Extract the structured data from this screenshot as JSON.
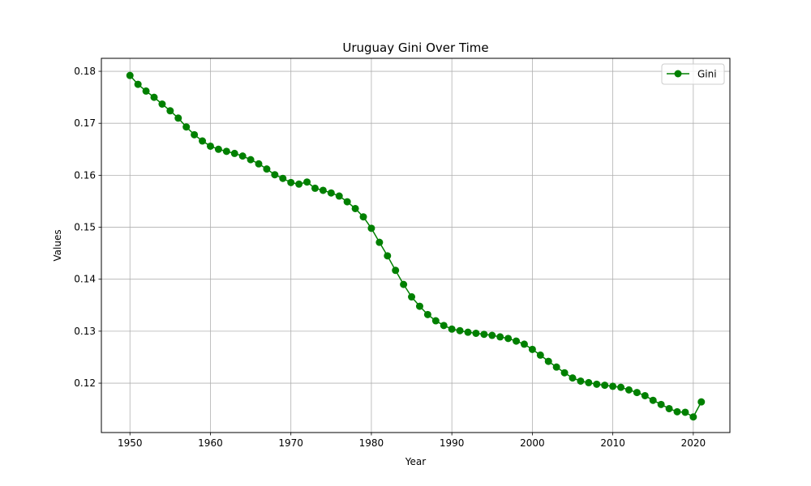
{
  "chart_data": {
    "type": "line",
    "title": "Uruguay Gini Over Time",
    "xlabel": "Year",
    "ylabel": "Values",
    "xlim": [
      1946.45,
      2024.55
    ],
    "ylim": [
      0.1105,
      0.1825
    ],
    "xticks": [
      1950,
      1960,
      1970,
      1980,
      1990,
      2000,
      2010,
      2020
    ],
    "yticks": [
      0.12,
      0.13,
      0.14,
      0.15,
      0.16,
      0.17,
      0.18
    ],
    "ytick_labels": [
      "0.12",
      "0.13",
      "0.14",
      "0.15",
      "0.16",
      "0.17",
      "0.18"
    ],
    "grid": true,
    "legend_position": "top-right",
    "series": [
      {
        "name": "Gini",
        "color": "#008000",
        "marker": "circle",
        "x": [
          1950,
          1951,
          1952,
          1953,
          1954,
          1955,
          1956,
          1957,
          1958,
          1959,
          1960,
          1961,
          1962,
          1963,
          1964,
          1965,
          1966,
          1967,
          1968,
          1969,
          1970,
          1971,
          1972,
          1973,
          1974,
          1975,
          1976,
          1977,
          1978,
          1979,
          1980,
          1981,
          1982,
          1983,
          1984,
          1985,
          1986,
          1987,
          1988,
          1989,
          1990,
          1991,
          1992,
          1993,
          1994,
          1995,
          1996,
          1997,
          1998,
          1999,
          2000,
          2001,
          2002,
          2003,
          2004,
          2005,
          2006,
          2007,
          2008,
          2009,
          2010,
          2011,
          2012,
          2013,
          2014,
          2015,
          2016,
          2017,
          2018,
          2019,
          2020,
          2021
        ],
        "values": [
          0.1792,
          0.1775,
          0.1762,
          0.175,
          0.1737,
          0.1724,
          0.171,
          0.1693,
          0.1678,
          0.1666,
          0.1656,
          0.165,
          0.1646,
          0.1642,
          0.1637,
          0.163,
          0.1622,
          0.1612,
          0.1601,
          0.1594,
          0.1586,
          0.1583,
          0.1587,
          0.1575,
          0.1571,
          0.1566,
          0.156,
          0.1549,
          0.1536,
          0.152,
          0.1498,
          0.1471,
          0.1445,
          0.1417,
          0.139,
          0.1366,
          0.1348,
          0.1332,
          0.132,
          0.1311,
          0.1304,
          0.1301,
          0.1298,
          0.1296,
          0.1294,
          0.1292,
          0.1289,
          0.1286,
          0.1281,
          0.1275,
          0.1265,
          0.1254,
          0.1242,
          0.1231,
          0.122,
          0.121,
          0.1204,
          0.1201,
          0.1198,
          0.1196,
          0.1194,
          0.1192,
          0.1187,
          0.1182,
          0.1176,
          0.1167,
          0.1159,
          0.1151,
          0.1145,
          0.1144,
          0.1135,
          0.1164
        ]
      }
    ]
  }
}
